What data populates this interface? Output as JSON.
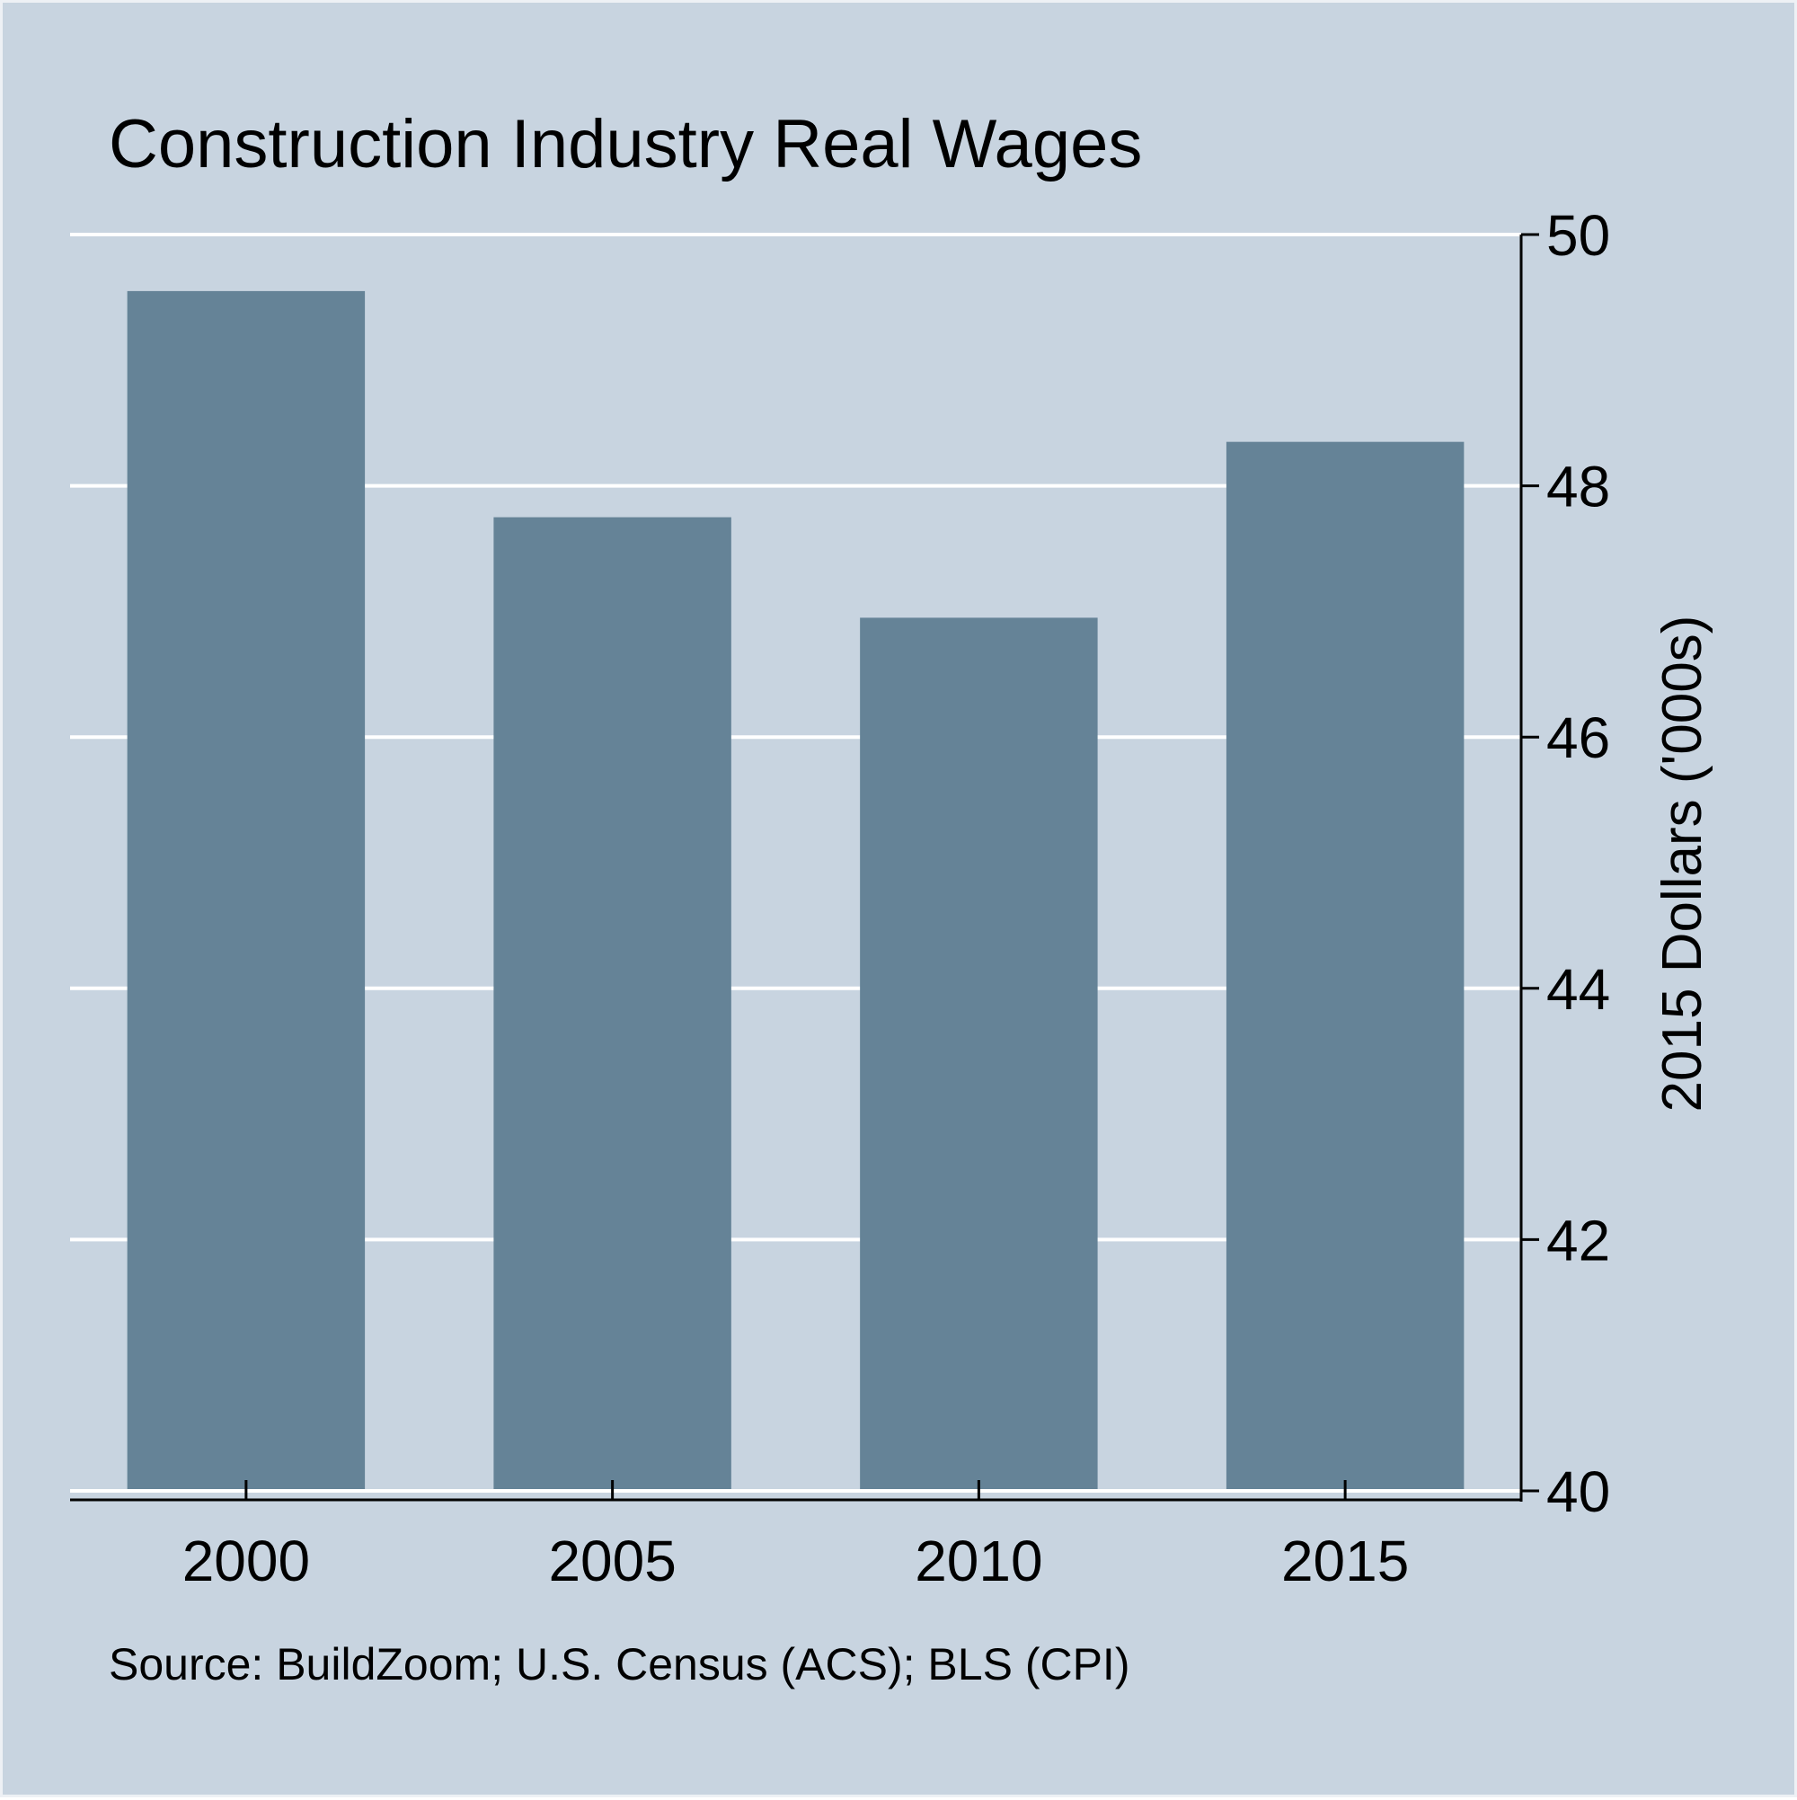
{
  "chart_data": {
    "type": "bar",
    "title": "Construction Industry Real Wages",
    "categories": [
      "2000",
      "2005",
      "2010",
      "2015"
    ],
    "values": [
      49.55,
      47.75,
      46.95,
      48.35
    ],
    "xlabel": "",
    "ylabel": "2015 Dollars ('000s)",
    "ylim": [
      40,
      50
    ],
    "yticks": [
      40,
      42,
      44,
      46,
      48,
      50
    ],
    "y_axis_side": "right",
    "grid": true,
    "legend": "none",
    "note": "Source: BuildZoom; U.S. Census (ACS); BLS (CPI)",
    "colors": {
      "background": "#c8d4e0",
      "bar": "#658397",
      "grid": "#ffffff",
      "axis": "#000000"
    }
  }
}
